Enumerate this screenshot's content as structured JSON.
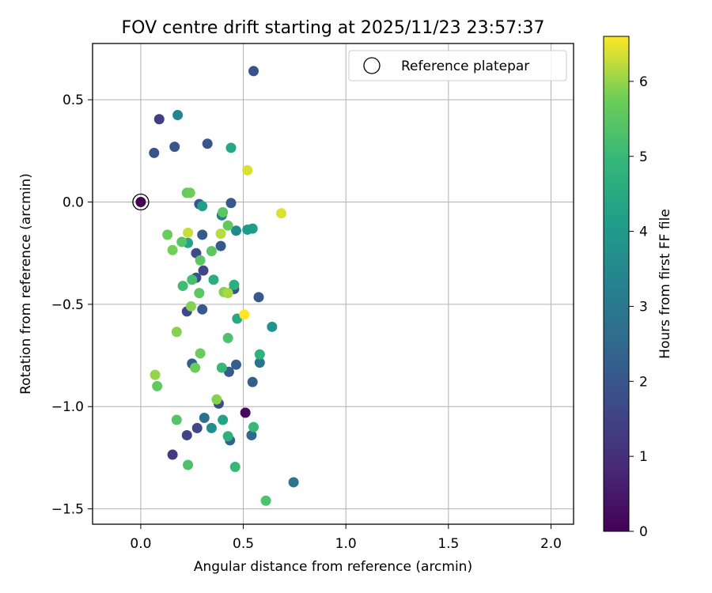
{
  "chart_data": {
    "type": "scatter",
    "title": "FOV centre drift starting at 2025/11/23 23:57:37",
    "xlabel": "Angular distance from reference (arcmin)",
    "ylabel": "Rotation from reference (arcmin)",
    "xlim": [
      -0.235,
      2.11
    ],
    "ylim": [
      -1.575,
      0.775
    ],
    "xticks": [
      0.0,
      0.5,
      1.0,
      1.5,
      2.0
    ],
    "xtick_labels": [
      "0.0",
      "0.5",
      "1.0",
      "1.5",
      "2.0"
    ],
    "yticks": [
      0.5,
      0.0,
      -0.5,
      -1.0,
      -1.5
    ],
    "ytick_labels": [
      "0.5",
      "0.0",
      "−0.5",
      "−1.0",
      "−1.5"
    ],
    "grid": true,
    "legend": {
      "label": "Reference platepar",
      "placement": "top-right"
    },
    "reference_point": {
      "x": 0.0,
      "y": 0.0
    },
    "colorbar": {
      "label": "Hours from first FF file",
      "colormap": "viridis",
      "range": [
        0,
        6.6
      ],
      "ticks": [
        0,
        1,
        2,
        3,
        4,
        5,
        6
      ],
      "tick_labels": [
        "0",
        "1",
        "2",
        "3",
        "4",
        "5",
        "6"
      ]
    },
    "points": [
      {
        "x": 0.0,
        "y": 0.0,
        "hours": 0.0
      },
      {
        "x": 0.51,
        "y": -1.03,
        "hours": 0.2
      },
      {
        "x": 0.09,
        "y": 0.405,
        "hours": 1.4
      },
      {
        "x": 0.155,
        "y": -1.235,
        "hours": 1.3
      },
      {
        "x": 0.225,
        "y": -1.14,
        "hours": 1.5
      },
      {
        "x": 0.275,
        "y": -1.105,
        "hours": 1.6
      },
      {
        "x": 0.225,
        "y": -0.535,
        "hours": 1.6
      },
      {
        "x": 0.27,
        "y": -0.25,
        "hours": 1.7
      },
      {
        "x": 0.305,
        "y": -0.335,
        "hours": 1.6
      },
      {
        "x": 0.27,
        "y": -0.37,
        "hours": 1.8
      },
      {
        "x": 0.38,
        "y": -0.985,
        "hours": 1.7
      },
      {
        "x": 0.065,
        "y": 0.24,
        "hours": 1.9
      },
      {
        "x": 0.165,
        "y": 0.27,
        "hours": 2.0
      },
      {
        "x": 0.325,
        "y": 0.285,
        "hours": 2.0
      },
      {
        "x": 0.55,
        "y": 0.64,
        "hours": 1.9
      },
      {
        "x": 0.285,
        "y": -0.01,
        "hours": 2.0
      },
      {
        "x": 0.44,
        "y": -0.005,
        "hours": 2.1
      },
      {
        "x": 0.3,
        "y": -0.16,
        "hours": 2.1
      },
      {
        "x": 0.39,
        "y": -0.215,
        "hours": 2.1
      },
      {
        "x": 0.3,
        "y": -0.525,
        "hours": 2.1
      },
      {
        "x": 0.455,
        "y": -0.425,
        "hours": 2.0
      },
      {
        "x": 0.575,
        "y": -0.465,
        "hours": 2.1
      },
      {
        "x": 0.25,
        "y": -0.79,
        "hours": 2.2
      },
      {
        "x": 0.43,
        "y": -0.83,
        "hours": 2.1
      },
      {
        "x": 0.465,
        "y": -0.795,
        "hours": 2.2
      },
      {
        "x": 0.545,
        "y": -0.88,
        "hours": 2.2
      },
      {
        "x": 0.435,
        "y": -1.165,
        "hours": 2.4
      },
      {
        "x": 0.54,
        "y": -1.14,
        "hours": 2.5
      },
      {
        "x": 0.31,
        "y": -1.055,
        "hours": 2.7
      },
      {
        "x": 0.58,
        "y": -0.785,
        "hours": 2.8
      },
      {
        "x": 0.745,
        "y": -1.37,
        "hours": 2.9
      },
      {
        "x": 0.395,
        "y": -0.065,
        "hours": 3.1
      },
      {
        "x": 0.18,
        "y": 0.425,
        "hours": 3.4
      },
      {
        "x": 0.465,
        "y": -0.14,
        "hours": 3.5
      },
      {
        "x": 0.345,
        "y": -1.105,
        "hours": 3.6
      },
      {
        "x": 0.64,
        "y": -0.61,
        "hours": 3.8
      },
      {
        "x": 0.52,
        "y": -0.135,
        "hours": 4.0
      },
      {
        "x": 0.545,
        "y": -0.13,
        "hours": 4.1
      },
      {
        "x": 0.3,
        "y": -0.02,
        "hours": 4.2
      },
      {
        "x": 0.4,
        "y": -1.065,
        "hours": 4.3
      },
      {
        "x": 0.44,
        "y": 0.265,
        "hours": 4.4
      },
      {
        "x": 0.23,
        "y": -0.2,
        "hours": 4.3
      },
      {
        "x": 0.47,
        "y": -0.57,
        "hours": 4.5
      },
      {
        "x": 0.355,
        "y": -0.38,
        "hours": 4.6
      },
      {
        "x": 0.58,
        "y": -0.745,
        "hours": 4.8
      },
      {
        "x": 0.455,
        "y": -0.405,
        "hours": 4.7
      },
      {
        "x": 0.425,
        "y": -1.145,
        "hours": 4.7
      },
      {
        "x": 0.46,
        "y": -1.295,
        "hours": 5.0
      },
      {
        "x": 0.55,
        "y": -1.1,
        "hours": 5.0
      },
      {
        "x": 0.395,
        "y": -0.81,
        "hours": 5.0
      },
      {
        "x": 0.205,
        "y": -0.41,
        "hours": 5.1
      },
      {
        "x": 0.25,
        "y": -0.38,
        "hours": 5.2
      },
      {
        "x": 0.61,
        "y": -1.46,
        "hours": 5.3
      },
      {
        "x": 0.23,
        "y": -1.285,
        "hours": 5.3
      },
      {
        "x": 0.425,
        "y": -0.665,
        "hours": 5.3
      },
      {
        "x": 0.175,
        "y": -1.065,
        "hours": 5.4
      },
      {
        "x": 0.29,
        "y": -0.285,
        "hours": 5.5
      },
      {
        "x": 0.345,
        "y": -0.24,
        "hours": 5.5
      },
      {
        "x": 0.2,
        "y": -0.195,
        "hours": 5.4
      },
      {
        "x": 0.285,
        "y": -0.445,
        "hours": 5.5
      },
      {
        "x": 0.4,
        "y": -0.05,
        "hours": 5.5
      },
      {
        "x": 0.425,
        "y": -0.115,
        "hours": 5.6
      },
      {
        "x": 0.08,
        "y": -0.9,
        "hours": 5.6
      },
      {
        "x": 0.29,
        "y": -0.74,
        "hours": 5.7
      },
      {
        "x": 0.265,
        "y": -0.81,
        "hours": 5.7
      },
      {
        "x": 0.225,
        "y": 0.045,
        "hours": 5.6
      },
      {
        "x": 0.24,
        "y": 0.045,
        "hours": 5.7
      },
      {
        "x": 0.13,
        "y": -0.16,
        "hours": 5.7
      },
      {
        "x": 0.155,
        "y": -0.235,
        "hours": 5.8
      },
      {
        "x": 0.245,
        "y": -0.51,
        "hours": 5.9
      },
      {
        "x": 0.175,
        "y": -0.635,
        "hours": 5.9
      },
      {
        "x": 0.405,
        "y": -0.44,
        "hours": 5.9
      },
      {
        "x": 0.37,
        "y": -0.965,
        "hours": 5.9
      },
      {
        "x": 0.07,
        "y": -0.845,
        "hours": 6.0
      },
      {
        "x": 0.425,
        "y": -0.445,
        "hours": 6.1
      },
      {
        "x": 0.39,
        "y": -0.155,
        "hours": 6.2
      },
      {
        "x": 0.23,
        "y": -0.15,
        "hours": 6.3
      },
      {
        "x": 0.52,
        "y": 0.155,
        "hours": 6.4
      },
      {
        "x": 0.685,
        "y": -0.055,
        "hours": 6.4
      },
      {
        "x": 0.505,
        "y": -0.55,
        "hours": 6.6
      }
    ]
  }
}
